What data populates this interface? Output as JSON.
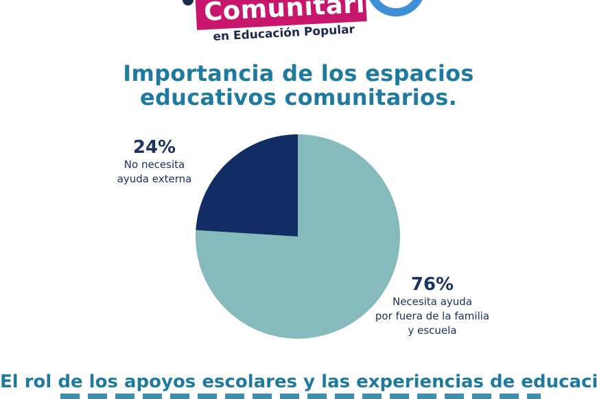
{
  "logo": {
    "word": "Comunitaria",
    "subtitle": "en Educación Popular",
    "colors": {
      "band": "#c8166c",
      "ring": "#3f8fd6",
      "text": "#1a2a4f"
    }
  },
  "title": {
    "line1": "Importancia de los espacios",
    "line2": "educativos comunitarios."
  },
  "chart_data": {
    "type": "pie",
    "start_angle_deg": 0,
    "direction": "clockwise",
    "slices": [
      {
        "value": 76,
        "label": "76%",
        "text_lines": [
          "Necesita ayuda",
          "por fuera de la familia",
          "y escuela"
        ],
        "color": "#85bbbc"
      },
      {
        "value": 24,
        "label": "24%",
        "text_lines": [
          "No necesita",
          "ayuda externa"
        ],
        "color": "#112d63"
      }
    ]
  },
  "footer": {
    "text": "El rol de los apoyos escolares y las experiencias de educación"
  },
  "colors": {
    "title": "#1f7aa0",
    "label_text": "#15305e",
    "background": "#ffffff"
  }
}
